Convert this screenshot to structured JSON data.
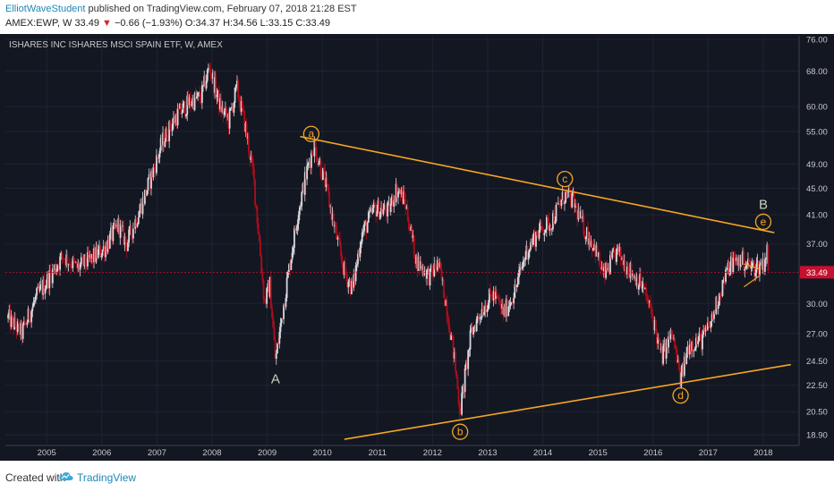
{
  "header": {
    "author": "ElliotWaveStudent",
    "published_text": "published on TradingView.com, February 07, 2018 21:28 EST",
    "symbol": "AMEX:EWP, W",
    "last": "33.49",
    "change_arrow": "▼",
    "change": "−0.66 (−1.93%)",
    "ohlc": "O:34.37 H:34.56 L:33.15 C:33.49"
  },
  "chart_data": {
    "type": "candlestick",
    "title": "ISHARES INC ISHARES MSCI SPAIN ETF, W, AMEX",
    "x_ticks": [
      "2005",
      "2006",
      "2007",
      "2008",
      "2009",
      "2010",
      "2011",
      "2012",
      "2013",
      "2014",
      "2015",
      "2016",
      "2017",
      "2018"
    ],
    "y_ticks": [
      "76.00",
      "68.00",
      "60.00",
      "55.00",
      "49.00",
      "45.00",
      "41.00",
      "37.00",
      "30.00",
      "27.00",
      "24.50",
      "22.50",
      "20.50",
      "18.90"
    ],
    "y_scale": "log",
    "ylim": [
      18.2,
      77
    ],
    "xlim": [
      2004.25,
      2018.65
    ],
    "last_price_label": "33.49",
    "last_price": 33.49,
    "price_path": [
      [
        2004.3,
        28.5
      ],
      [
        2004.55,
        27.0
      ],
      [
        2004.8,
        30.5
      ],
      [
        2005.1,
        33.5
      ],
      [
        2005.3,
        35.5
      ],
      [
        2005.55,
        34.0
      ],
      [
        2005.8,
        35.0
      ],
      [
        2006.05,
        36.5
      ],
      [
        2006.3,
        39.5
      ],
      [
        2006.45,
        37.0
      ],
      [
        2006.7,
        42.0
      ],
      [
        2006.9,
        47.0
      ],
      [
        2007.1,
        53.0
      ],
      [
        2007.35,
        58.0
      ],
      [
        2007.6,
        61.0
      ],
      [
        2007.8,
        62.0
      ],
      [
        2007.95,
        69.0
      ],
      [
        2008.15,
        60.0
      ],
      [
        2008.3,
        57.0
      ],
      [
        2008.45,
        64.0
      ],
      [
        2008.6,
        56.0
      ],
      [
        2008.75,
        47.0
      ],
      [
        2008.85,
        38.0
      ],
      [
        2008.95,
        30.0
      ],
      [
        2009.05,
        32.0
      ],
      [
        2009.15,
        24.5
      ],
      [
        2009.35,
        32.0
      ],
      [
        2009.55,
        41.0
      ],
      [
        2009.75,
        49.0
      ],
      [
        2009.85,
        52.5
      ],
      [
        2010.05,
        46.0
      ],
      [
        2010.2,
        40.0
      ],
      [
        2010.4,
        33.5
      ],
      [
        2010.55,
        31.5
      ],
      [
        2010.7,
        38.0
      ],
      [
        2010.95,
        42.0
      ],
      [
        2011.2,
        41.5
      ],
      [
        2011.35,
        45.0
      ],
      [
        2011.5,
        43.0
      ],
      [
        2011.7,
        35.0
      ],
      [
        2011.95,
        33.0
      ],
      [
        2012.1,
        34.5
      ],
      [
        2012.25,
        30.0
      ],
      [
        2012.4,
        24.5
      ],
      [
        2012.5,
        20.5
      ],
      [
        2012.7,
        27.0
      ],
      [
        2012.9,
        29.5
      ],
      [
        2013.1,
        31.0
      ],
      [
        2013.3,
        29.0
      ],
      [
        2013.5,
        31.5
      ],
      [
        2013.7,
        36.0
      ],
      [
        2013.9,
        38.5
      ],
      [
        2014.15,
        40.0
      ],
      [
        2014.4,
        44.0
      ],
      [
        2014.55,
        43.0
      ],
      [
        2014.75,
        39.0
      ],
      [
        2014.95,
        36.5
      ],
      [
        2015.1,
        33.0
      ],
      [
        2015.35,
        36.0
      ],
      [
        2015.55,
        34.0
      ],
      [
        2015.8,
        32.0
      ],
      [
        2016.0,
        28.5
      ],
      [
        2016.15,
        24.8
      ],
      [
        2016.35,
        27.0
      ],
      [
        2016.5,
        22.8
      ],
      [
        2016.65,
        26.0
      ],
      [
        2016.9,
        26.5
      ],
      [
        2017.05,
        28.0
      ],
      [
        2017.2,
        31.0
      ],
      [
        2017.4,
        34.5
      ],
      [
        2017.6,
        35.0
      ],
      [
        2017.8,
        34.0
      ],
      [
        2018.0,
        34.5
      ],
      [
        2018.07,
        36.0
      ],
      [
        2018.1,
        33.5
      ]
    ],
    "trendlines": [
      {
        "from": [
          2009.6,
          54.0
        ],
        "to": [
          2018.2,
          38.5
        ]
      },
      {
        "from": [
          2010.4,
          18.6
        ],
        "to": [
          2018.5,
          24.2
        ]
      }
    ],
    "wave_labels": [
      {
        "text": "a",
        "x": 2009.8,
        "y": 54.5,
        "circled": true
      },
      {
        "text": "c",
        "x": 2014.4,
        "y": 46.5,
        "circled": true
      },
      {
        "text": "e",
        "x": 2018.0,
        "y": 40.0,
        "circled": true
      },
      {
        "text": "B",
        "x": 2018.0,
        "y": 42.5,
        "circled": false
      },
      {
        "text": "b",
        "x": 2012.5,
        "y": 19.1,
        "circled": true
      },
      {
        "text": "d",
        "x": 2016.5,
        "y": 21.7,
        "circled": true
      },
      {
        "text": "A",
        "x": 2009.15,
        "y": 23.0,
        "circled": false
      }
    ],
    "colors": {
      "background": "#131722",
      "up": "#d8d8dc",
      "down": "#b00c19",
      "trendline": "#f5a623",
      "last_price_line": "#c8102e",
      "text": "#c8c9cc"
    }
  },
  "footer": {
    "created_with": "Created with",
    "brand": "TradingView"
  }
}
